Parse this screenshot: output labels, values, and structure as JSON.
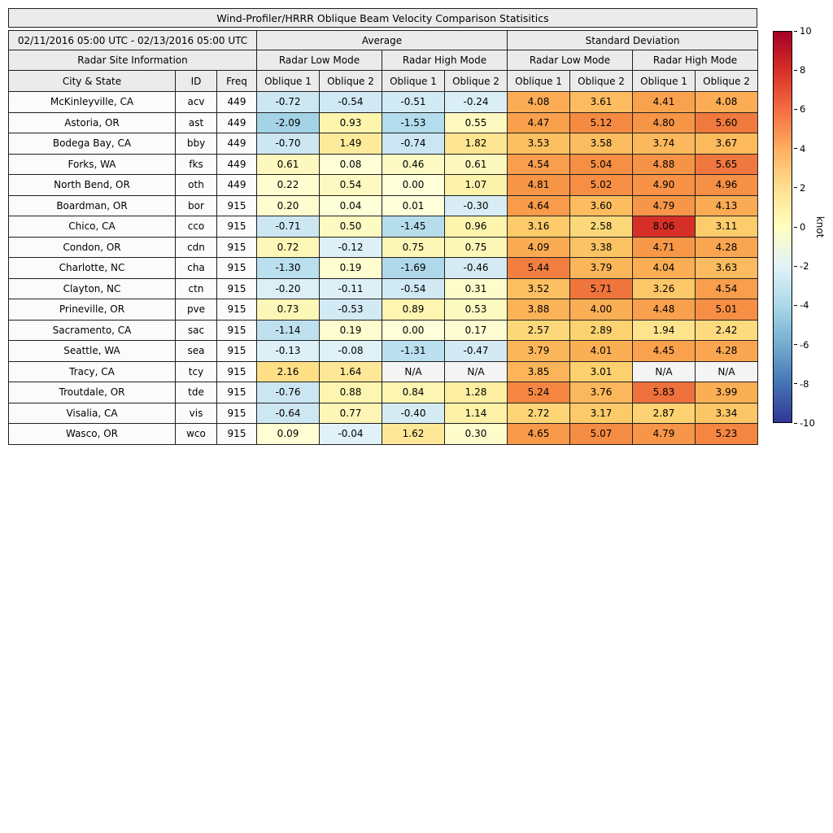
{
  "header": {
    "date_range": "02/11/2016 05:00 UTC - 02/13/2016 05:00 UTC",
    "group_average": "Average",
    "group_std": "Standard Deviation",
    "site_info": "Radar Site Information",
    "low_mode": "Radar Low Mode",
    "high_mode": "Radar High Mode",
    "col_city": "City & State",
    "col_id": "ID",
    "col_freq": "Freq",
    "col_oblique1": "Oblique 1",
    "col_oblique2": "Oblique 2"
  },
  "colorbar": {
    "label": "knot",
    "vmin": -10,
    "vmax": 10,
    "ticks": [
      10,
      8,
      6,
      4,
      2,
      0,
      -2,
      -4,
      -6,
      -8,
      -10
    ],
    "gradient_top_to_bottom": [
      "#a50026",
      "#d73027",
      "#f46d43",
      "#fdae61",
      "#fee090",
      "#ffffbf",
      "#e0f3f8",
      "#abd9e9",
      "#74add1",
      "#4575b4",
      "#313695"
    ]
  },
  "cell_colormap": [
    [
      -10,
      "#313695"
    ],
    [
      -6,
      "#5b9dc8"
    ],
    [
      -4,
      "#85c0dc"
    ],
    [
      -2.5,
      "#99cde3"
    ],
    [
      -1.5,
      "#b4dcec"
    ],
    [
      -0.75,
      "#cbe6f2"
    ],
    [
      -0.25,
      "#daeef6"
    ],
    [
      -0.001,
      "#e2f2f8"
    ],
    [
      0,
      "#ffffd9"
    ],
    [
      0.5,
      "#fdfac2"
    ],
    [
      1,
      "#fdf3ab"
    ],
    [
      2,
      "#fee28b"
    ],
    [
      3,
      "#fdd06e"
    ],
    [
      4,
      "#fbaf55"
    ],
    [
      5,
      "#f68f44"
    ],
    [
      6,
      "#ec6a3a"
    ],
    [
      8,
      "#d73027"
    ],
    [
      10,
      "#a50026"
    ]
  ],
  "chart_data": {
    "type": "heatmap",
    "title": "Wind-Profiler/HRRR Oblique Beam Velocity Comparison Statisitics",
    "value_unit": "knot",
    "colorbar_range": [
      -10,
      10
    ],
    "columns": [
      "City & State",
      "ID",
      "Freq",
      "Average Radar Low Mode Oblique 1",
      "Average Radar Low Mode Oblique 2",
      "Average Radar High Mode Oblique 1",
      "Average Radar High Mode Oblique 2",
      "Std Dev Radar Low Mode Oblique 1",
      "Std Dev Radar Low Mode Oblique 2",
      "Std Dev Radar High Mode Oblique 1",
      "Std Dev Radar High Mode Oblique 2"
    ],
    "rows": [
      {
        "city": "McKinleyville, CA",
        "id": "acv",
        "freq": "449",
        "values": [
          "-0.72",
          "-0.54",
          "-0.51",
          "-0.24",
          "4.08",
          "3.61",
          "4.41",
          "4.08"
        ]
      },
      {
        "city": "Astoria, OR",
        "id": "ast",
        "freq": "449",
        "values": [
          "-2.09",
          "0.93",
          "-1.53",
          "0.55",
          "4.47",
          "5.12",
          "4.80",
          "5.60"
        ]
      },
      {
        "city": "Bodega Bay, CA",
        "id": "bby",
        "freq": "449",
        "values": [
          "-0.70",
          "1.49",
          "-0.74",
          "1.82",
          "3.53",
          "3.58",
          "3.74",
          "3.67"
        ]
      },
      {
        "city": "Forks, WA",
        "id": "fks",
        "freq": "449",
        "values": [
          "0.61",
          "0.08",
          "0.46",
          "0.61",
          "4.54",
          "5.04",
          "4.88",
          "5.65"
        ]
      },
      {
        "city": "North Bend, OR",
        "id": "oth",
        "freq": "449",
        "values": [
          "0.22",
          "0.54",
          "0.00",
          "1.07",
          "4.81",
          "5.02",
          "4.90",
          "4.96"
        ]
      },
      {
        "city": "Boardman, OR",
        "id": "bor",
        "freq": "915",
        "values": [
          "0.20",
          "0.04",
          "0.01",
          "-0.30",
          "4.64",
          "3.60",
          "4.79",
          "4.13"
        ]
      },
      {
        "city": "Chico, CA",
        "id": "cco",
        "freq": "915",
        "values": [
          "-0.71",
          "0.50",
          "-1.45",
          "0.96",
          "3.16",
          "2.58",
          "8.06",
          "3.11"
        ]
      },
      {
        "city": "Condon, OR",
        "id": "cdn",
        "freq": "915",
        "values": [
          "0.72",
          "-0.12",
          "0.75",
          "0.75",
          "4.09",
          "3.38",
          "4.71",
          "4.28"
        ]
      },
      {
        "city": "Charlotte, NC",
        "id": "cha",
        "freq": "915",
        "values": [
          "-1.30",
          "0.19",
          "-1.69",
          "-0.46",
          "5.44",
          "3.79",
          "4.04",
          "3.63"
        ]
      },
      {
        "city": "Clayton, NC",
        "id": "ctn",
        "freq": "915",
        "values": [
          "-0.20",
          "-0.11",
          "-0.54",
          "0.31",
          "3.52",
          "5.71",
          "3.26",
          "4.54"
        ]
      },
      {
        "city": "Prineville, OR",
        "id": "pve",
        "freq": "915",
        "values": [
          "0.73",
          "-0.53",
          "0.89",
          "0.53",
          "3.88",
          "4.00",
          "4.48",
          "5.01"
        ]
      },
      {
        "city": "Sacramento, CA",
        "id": "sac",
        "freq": "915",
        "values": [
          "-1.14",
          "0.19",
          "0.00",
          "0.17",
          "2.57",
          "2.89",
          "1.94",
          "2.42"
        ]
      },
      {
        "city": "Seattle, WA",
        "id": "sea",
        "freq": "915",
        "values": [
          "-0.13",
          "-0.08",
          "-1.31",
          "-0.47",
          "3.79",
          "4.01",
          "4.45",
          "4.28"
        ]
      },
      {
        "city": "Tracy, CA",
        "id": "tcy",
        "freq": "915",
        "values": [
          "2.16",
          "1.64",
          "N/A",
          "N/A",
          "3.85",
          "3.01",
          "N/A",
          "N/A"
        ]
      },
      {
        "city": "Troutdale, OR",
        "id": "tde",
        "freq": "915",
        "values": [
          "-0.76",
          "0.88",
          "0.84",
          "1.28",
          "5.24",
          "3.76",
          "5.83",
          "3.99"
        ]
      },
      {
        "city": "Visalia, CA",
        "id": "vis",
        "freq": "915",
        "values": [
          "-0.64",
          "0.77",
          "-0.40",
          "1.14",
          "2.72",
          "3.17",
          "2.87",
          "3.34"
        ]
      },
      {
        "city": "Wasco, OR",
        "id": "wco",
        "freq": "915",
        "values": [
          "0.09",
          "-0.04",
          "1.62",
          "0.30",
          "4.65",
          "5.07",
          "4.79",
          "5.23"
        ]
      }
    ]
  }
}
